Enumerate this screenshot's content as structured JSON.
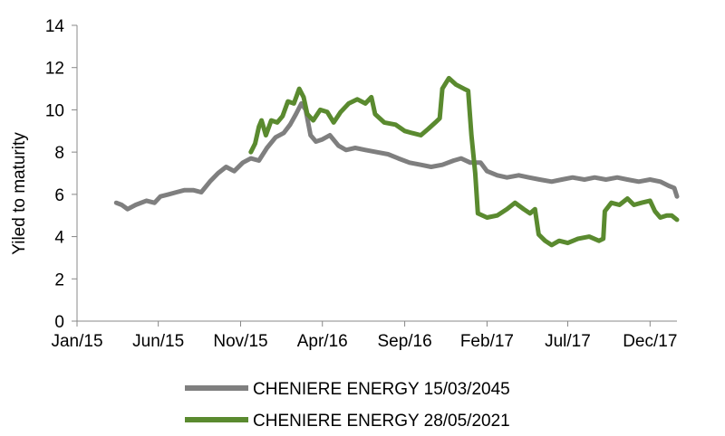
{
  "chart_data": {
    "type": "line",
    "title": "",
    "xlabel": "",
    "ylabel": "Yiled to maturity",
    "x_ticks": [
      "Jan/15",
      "Jun/15",
      "Nov/15",
      "Apr/16",
      "Sep/16",
      "Feb/17",
      "Jul/17",
      "Dec/17"
    ],
    "x_tick_dates": [
      "2015-01-01",
      "2015-06-01",
      "2015-11-01",
      "2016-04-01",
      "2016-09-01",
      "2017-02-01",
      "2017-07-01",
      "2017-12-01"
    ],
    "xlim": [
      "2015-01-01",
      "2018-01-20"
    ],
    "ylim": [
      0,
      14
    ],
    "y_ticks": [
      0,
      2,
      4,
      6,
      8,
      10,
      12,
      14
    ],
    "grid": false,
    "legend_position": "bottom",
    "series": [
      {
        "name": "CHENIERE ENERGY 15/03/2045",
        "color": "#7f7f7f",
        "points": [
          [
            "2015-03-15",
            5.6
          ],
          [
            "2015-03-25",
            5.5
          ],
          [
            "2015-04-05",
            5.3
          ],
          [
            "2015-04-20",
            5.5
          ],
          [
            "2015-05-10",
            5.7
          ],
          [
            "2015-05-25",
            5.6
          ],
          [
            "2015-06-05",
            5.9
          ],
          [
            "2015-06-20",
            6.0
          ],
          [
            "2015-07-05",
            6.1
          ],
          [
            "2015-07-20",
            6.2
          ],
          [
            "2015-08-05",
            6.2
          ],
          [
            "2015-08-20",
            6.1
          ],
          [
            "2015-09-05",
            6.6
          ],
          [
            "2015-09-20",
            7.0
          ],
          [
            "2015-10-05",
            7.3
          ],
          [
            "2015-10-20",
            7.1
          ],
          [
            "2015-11-05",
            7.5
          ],
          [
            "2015-11-20",
            7.7
          ],
          [
            "2015-12-05",
            7.6
          ],
          [
            "2015-12-20",
            8.2
          ],
          [
            "2016-01-05",
            8.7
          ],
          [
            "2016-01-20",
            8.9
          ],
          [
            "2016-02-01",
            9.3
          ],
          [
            "2016-02-12",
            9.8
          ],
          [
            "2016-02-22",
            10.3
          ],
          [
            "2016-03-01",
            10.0
          ],
          [
            "2016-03-10",
            8.8
          ],
          [
            "2016-03-20",
            8.5
          ],
          [
            "2016-04-01",
            8.6
          ],
          [
            "2016-04-15",
            8.8
          ],
          [
            "2016-05-01",
            8.3
          ],
          [
            "2016-05-15",
            8.1
          ],
          [
            "2016-06-01",
            8.2
          ],
          [
            "2016-06-20",
            8.1
          ],
          [
            "2016-07-10",
            8.0
          ],
          [
            "2016-08-01",
            7.9
          ],
          [
            "2016-08-20",
            7.7
          ],
          [
            "2016-09-10",
            7.5
          ],
          [
            "2016-10-01",
            7.4
          ],
          [
            "2016-10-20",
            7.3
          ],
          [
            "2016-11-10",
            7.4
          ],
          [
            "2016-12-01",
            7.6
          ],
          [
            "2016-12-15",
            7.7
          ],
          [
            "2017-01-01",
            7.5
          ],
          [
            "2017-01-20",
            7.5
          ],
          [
            "2017-02-01",
            7.1
          ],
          [
            "2017-02-20",
            6.9
          ],
          [
            "2017-03-10",
            6.8
          ],
          [
            "2017-04-01",
            6.9
          ],
          [
            "2017-04-20",
            6.8
          ],
          [
            "2017-05-10",
            6.7
          ],
          [
            "2017-06-01",
            6.6
          ],
          [
            "2017-06-20",
            6.7
          ],
          [
            "2017-07-10",
            6.8
          ],
          [
            "2017-08-01",
            6.7
          ],
          [
            "2017-08-20",
            6.8
          ],
          [
            "2017-09-10",
            6.7
          ],
          [
            "2017-10-01",
            6.8
          ],
          [
            "2017-10-20",
            6.7
          ],
          [
            "2017-11-10",
            6.6
          ],
          [
            "2017-12-01",
            6.7
          ],
          [
            "2017-12-20",
            6.6
          ],
          [
            "2018-01-05",
            6.4
          ],
          [
            "2018-01-15",
            6.3
          ],
          [
            "2018-01-20",
            5.9
          ]
        ]
      },
      {
        "name": "CHENIERE ENERGY 28/05/2021",
        "color": "#5a8a2f",
        "points": [
          [
            "2015-11-20",
            8.0
          ],
          [
            "2015-11-28",
            8.4
          ],
          [
            "2015-12-05",
            9.2
          ],
          [
            "2015-12-10",
            9.5
          ],
          [
            "2015-12-18",
            8.8
          ],
          [
            "2015-12-28",
            9.5
          ],
          [
            "2016-01-08",
            9.4
          ],
          [
            "2016-01-18",
            9.7
          ],
          [
            "2016-01-28",
            10.4
          ],
          [
            "2016-02-08",
            10.3
          ],
          [
            "2016-02-18",
            11.0
          ],
          [
            "2016-02-26",
            10.6
          ],
          [
            "2016-03-04",
            9.8
          ],
          [
            "2016-03-15",
            9.5
          ],
          [
            "2016-03-28",
            10.0
          ],
          [
            "2016-04-10",
            9.9
          ],
          [
            "2016-04-22",
            9.4
          ],
          [
            "2016-05-05",
            9.9
          ],
          [
            "2016-05-20",
            10.3
          ],
          [
            "2016-06-05",
            10.5
          ],
          [
            "2016-06-20",
            10.3
          ],
          [
            "2016-07-01",
            10.6
          ],
          [
            "2016-07-08",
            9.8
          ],
          [
            "2016-07-25",
            9.4
          ],
          [
            "2016-08-15",
            9.3
          ],
          [
            "2016-09-01",
            9.0
          ],
          [
            "2016-09-15",
            8.9
          ],
          [
            "2016-10-01",
            8.8
          ],
          [
            "2016-10-15",
            9.1
          ],
          [
            "2016-10-28",
            9.4
          ],
          [
            "2016-11-05",
            9.6
          ],
          [
            "2016-11-10",
            11.0
          ],
          [
            "2016-11-22",
            11.5
          ],
          [
            "2016-12-05",
            11.2
          ],
          [
            "2016-12-20",
            11.0
          ],
          [
            "2016-12-28",
            10.9
          ],
          [
            "2017-01-03",
            8.8
          ],
          [
            "2017-01-10",
            7.0
          ],
          [
            "2017-01-15",
            5.1
          ],
          [
            "2017-02-01",
            4.9
          ],
          [
            "2017-02-20",
            5.0
          ],
          [
            "2017-03-10",
            5.3
          ],
          [
            "2017-03-25",
            5.6
          ],
          [
            "2017-04-10",
            5.3
          ],
          [
            "2017-04-22",
            5.1
          ],
          [
            "2017-05-01",
            5.3
          ],
          [
            "2017-05-08",
            4.1
          ],
          [
            "2017-05-20",
            3.8
          ],
          [
            "2017-06-01",
            3.6
          ],
          [
            "2017-06-15",
            3.8
          ],
          [
            "2017-07-01",
            3.7
          ],
          [
            "2017-07-20",
            3.9
          ],
          [
            "2017-08-10",
            4.0
          ],
          [
            "2017-08-28",
            3.8
          ],
          [
            "2017-09-05",
            3.9
          ],
          [
            "2017-09-08",
            5.2
          ],
          [
            "2017-09-20",
            5.6
          ],
          [
            "2017-10-05",
            5.5
          ],
          [
            "2017-10-20",
            5.8
          ],
          [
            "2017-11-01",
            5.5
          ],
          [
            "2017-11-15",
            5.6
          ],
          [
            "2017-12-01",
            5.7
          ],
          [
            "2017-12-10",
            5.2
          ],
          [
            "2017-12-20",
            4.9
          ],
          [
            "2018-01-01",
            5.0
          ],
          [
            "2018-01-10",
            5.0
          ],
          [
            "2018-01-20",
            4.8
          ]
        ]
      }
    ]
  }
}
